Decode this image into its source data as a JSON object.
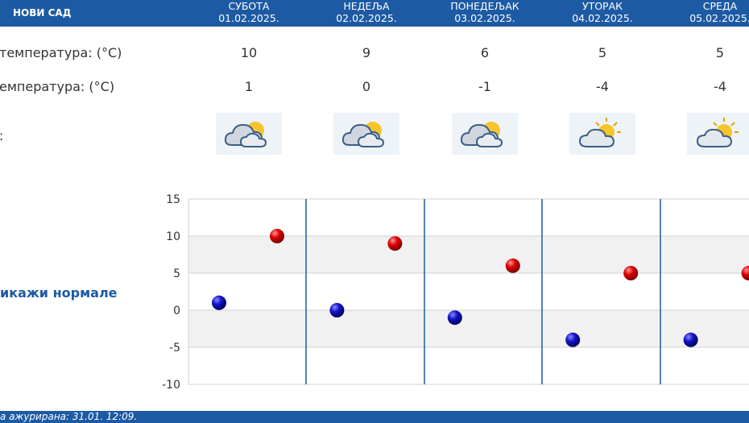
{
  "header": {
    "city": "НОВИ САД",
    "days": [
      {
        "name": "СУБОТА",
        "date": "01.02.2025."
      },
      {
        "name": "НЕДЕЉА",
        "date": "02.02.2025."
      },
      {
        "name": "ПОНЕДЕЉАК",
        "date": "03.02.2025."
      },
      {
        "name": "УТОРАК",
        "date": "04.02.2025."
      },
      {
        "name": "СРЕДА",
        "date": "05.02.2025."
      }
    ]
  },
  "rows": {
    "max_label": "температура: (°C)",
    "min_label": "емпература: (°C)",
    "icon_label": ":",
    "max": [
      "10",
      "9",
      "6",
      "5",
      "5"
    ],
    "min": [
      "1",
      "0",
      "-1",
      "-4",
      "-4"
    ]
  },
  "icons": [
    "partly-cloudy-icon",
    "partly-cloudy-icon",
    "partly-cloudy-icon",
    "sun-cloud-icon",
    "sun-cloud-icon"
  ],
  "normals_link": "икажи нормале",
  "footer": {
    "text": "а ажурирана:  31.01. 12:09."
  },
  "colors": {
    "header": "#1d5aa4",
    "max_dot": "#d40000",
    "min_dot": "#1010b0",
    "divider": "#1d5aa4"
  },
  "chart_data": {
    "type": "scatter",
    "ylim": [
      -10,
      15
    ],
    "yticks": [
      15,
      10,
      5,
      0,
      -5,
      -10
    ],
    "categories": [
      "01.02.2025.",
      "02.02.2025.",
      "03.02.2025.",
      "04.02.2025.",
      "05.02.2025."
    ],
    "series": [
      {
        "key": "max",
        "values": [
          10,
          9,
          6,
          5,
          5
        ]
      },
      {
        "key": "min",
        "values": [
          1,
          0,
          -1,
          -4,
          -4
        ]
      }
    ],
    "grid": true
  }
}
